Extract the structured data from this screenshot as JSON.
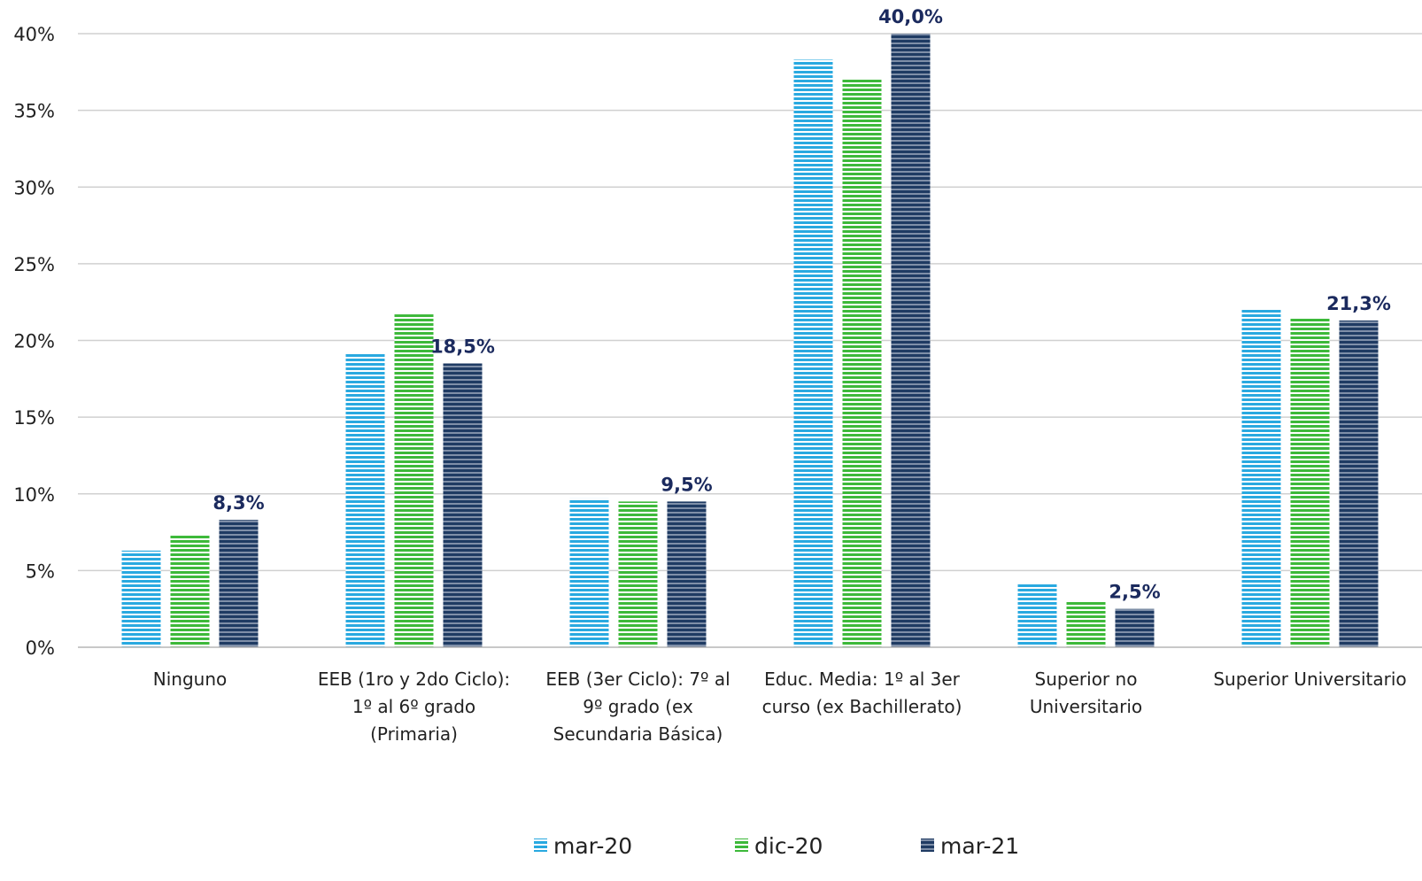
{
  "chart_data": {
    "type": "bar",
    "categories": [
      [
        "Ninguno"
      ],
      [
        "EEB (1ro y 2do Ciclo):",
        "1º al 6º grado",
        "(Primaria)"
      ],
      [
        "EEB (3er Ciclo): 7º al",
        "9º grado (ex",
        "Secundaria Básica)"
      ],
      [
        "Educ. Media: 1º al 3er",
        "curso (ex Bachillerato)"
      ],
      [
        "Superior no",
        "Universitario"
      ],
      [
        "Superior Universitario"
      ]
    ],
    "series": [
      {
        "name": "mar-20",
        "color": "#29A9E0",
        "values": [
          6.3,
          19.2,
          9.7,
          38.3,
          4.2,
          22.1
        ]
      },
      {
        "name": "dic-20",
        "color": "#3DB93A",
        "values": [
          7.3,
          21.7,
          9.5,
          37.0,
          3.0,
          21.5
        ]
      },
      {
        "name": "mar-21",
        "color": "#1F3B63",
        "values": [
          8.3,
          18.5,
          9.5,
          40.0,
          2.5,
          21.3
        ]
      }
    ],
    "data_labels": {
      "series": "mar-21",
      "color": "#1B2A5E",
      "values": [
        "8,3%",
        "18,5%",
        "9,5%",
        "40,0%",
        "2,5%",
        "21,3%"
      ]
    },
    "ylim": [
      0,
      40
    ],
    "yticks": [
      0,
      5,
      10,
      15,
      20,
      25,
      30,
      35,
      40
    ],
    "ytick_labels": [
      "0%",
      "5%",
      "10%",
      "15%",
      "20%",
      "25%",
      "30%",
      "35%",
      "40%"
    ],
    "title": "",
    "xlabel": "",
    "ylabel": "",
    "grid": true,
    "legend_position": "bottom"
  }
}
